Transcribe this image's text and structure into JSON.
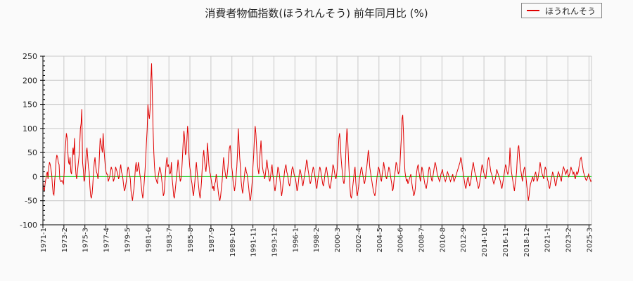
{
  "title": "消費者物価指数(ほうれんそう) 前年同月比 (%)",
  "legend": {
    "label": "ほうれんそう",
    "color": "#e00000"
  },
  "chart_data": {
    "type": "line",
    "title": "消費者物価指数(ほうれんそう) 前年同月比 (%)",
    "xlabel": "",
    "ylabel": "",
    "ylim": [
      -100,
      250
    ],
    "yticks": [
      250,
      200,
      150,
      100,
      50,
      0,
      -50,
      -100
    ],
    "xtick_labels": [
      "1971-1",
      "1973-2",
      "1975-3",
      "1977-4",
      "1979-5",
      "1981-6",
      "1983-7",
      "1985-8",
      "1987-9",
      "1989-10",
      "1991-11",
      "1993-12",
      "1996-1",
      "1998-2",
      "2000-3",
      "2002-4",
      "2004-5",
      "2006-6",
      "2008-7",
      "2010-8",
      "2012-9",
      "2014-10",
      "2016-11",
      "2018-12",
      "2021-1",
      "2023-2",
      "2025-3"
    ],
    "grid": true,
    "legend_position": "top-right",
    "zero_line_color": "#00cc00",
    "series": [
      {
        "name": "ほうれんそう",
        "color": "#e00000",
        "start": "1971-1",
        "frequency": "monthly",
        "values": [
          -10,
          -25,
          -30,
          -15,
          -5,
          5,
          10,
          -5,
          20,
          30,
          25,
          15,
          5,
          -20,
          -35,
          -38,
          -10,
          10,
          35,
          45,
          40,
          30,
          25,
          -5,
          -10,
          -10,
          -8,
          -12,
          -15,
          10,
          50,
          70,
          90,
          80,
          50,
          30,
          25,
          40,
          10,
          5,
          30,
          60,
          45,
          80,
          30,
          5,
          -5,
          10,
          25,
          40,
          60,
          100,
          110,
          140,
          30,
          15,
          -10,
          -5,
          20,
          50,
          60,
          40,
          20,
          10,
          -20,
          -40,
          -45,
          -35,
          -15,
          10,
          30,
          40,
          20,
          10,
          5,
          -5,
          10,
          45,
          80,
          70,
          60,
          50,
          90,
          60,
          40,
          20,
          10,
          5,
          5,
          -10,
          -5,
          0,
          10,
          20,
          15,
          5,
          -10,
          -5,
          5,
          20,
          15,
          10,
          5,
          -5,
          0,
          15,
          25,
          10,
          5,
          -5,
          -20,
          -30,
          -25,
          -15,
          -5,
          10,
          20,
          15,
          5,
          -5,
          -30,
          -40,
          -50,
          -35,
          -25,
          -5,
          20,
          30,
          10,
          15,
          30,
          20,
          5,
          -5,
          -20,
          -35,
          -45,
          -30,
          -10,
          10,
          40,
          70,
          100,
          150,
          130,
          120,
          140,
          200,
          235,
          170,
          100,
          50,
          20,
          0,
          -5,
          -10,
          -15,
          0,
          10,
          20,
          15,
          5,
          -10,
          -20,
          -40,
          -35,
          -15,
          10,
          30,
          40,
          20,
          25,
          15,
          5,
          10,
          30,
          -5,
          -20,
          -40,
          -45,
          -30,
          -15,
          0,
          15,
          35,
          20,
          5,
          -10,
          -5,
          10,
          40,
          70,
          95,
          80,
          45,
          50,
          75,
          105,
          85,
          40,
          20,
          10,
          -5,
          -15,
          -30,
          -40,
          -25,
          -10,
          15,
          30,
          10,
          -5,
          -20,
          -35,
          -45,
          -30,
          -10,
          20,
          40,
          55,
          35,
          20,
          10,
          30,
          70,
          50,
          25,
          10,
          5,
          -5,
          -15,
          -25,
          -20,
          -30,
          -15,
          -10,
          5,
          -5,
          -20,
          -35,
          -45,
          -50,
          -40,
          -25,
          -10,
          15,
          40,
          25,
          10,
          0,
          -5,
          5,
          20,
          45,
          60,
          65,
          50,
          20,
          10,
          -10,
          -20,
          -30,
          -15,
          0,
          20,
          50,
          100,
          70,
          40,
          20,
          -10,
          -25,
          -35,
          -20,
          -5,
          10,
          20,
          10,
          5,
          -5,
          -20,
          -35,
          -50,
          -45,
          -30,
          -10,
          20,
          45,
          80,
          105,
          90,
          60,
          30,
          15,
          5,
          30,
          55,
          75,
          45,
          20,
          10,
          5,
          -5,
          5,
          20,
          35,
          20,
          10,
          -5,
          -10,
          0,
          15,
          25,
          5,
          -5,
          -20,
          -30,
          -20,
          -10,
          5,
          20,
          15,
          5,
          -10,
          -25,
          -40,
          -30,
          -15,
          -5,
          10,
          20,
          25,
          10,
          5,
          -5,
          -15,
          -20,
          -10,
          0,
          15,
          20,
          15,
          5,
          0,
          -5,
          -15,
          -30,
          -25,
          -10,
          5,
          15,
          10,
          0,
          -10,
          -20,
          -10,
          0,
          10,
          20,
          35,
          30,
          15,
          5,
          -5,
          -15,
          -10,
          5,
          10,
          20,
          15,
          5,
          -5,
          -20,
          -25,
          -10,
          0,
          10,
          20,
          15,
          5,
          -5,
          -15,
          -20,
          -10,
          5,
          15,
          20,
          10,
          0,
          -10,
          -20,
          -25,
          -15,
          -5,
          10,
          25,
          20,
          10,
          0,
          -5,
          5,
          20,
          50,
          80,
          90,
          70,
          40,
          20,
          5,
          -10,
          -15,
          0,
          30,
          70,
          100,
          80,
          40,
          10,
          -20,
          -40,
          -45,
          -35,
          -20,
          -5,
          10,
          20,
          -10,
          -30,
          -40,
          -30,
          -20,
          -5,
          5,
          15,
          20,
          10,
          0,
          -10,
          -15,
          -5,
          10,
          20,
          35,
          55,
          45,
          20,
          10,
          0,
          -10,
          -20,
          -30,
          -35,
          -40,
          -30,
          -15,
          0,
          10,
          20,
          15,
          5,
          -5,
          -10,
          5,
          15,
          30,
          20,
          10,
          0,
          -5,
          5,
          10,
          20,
          15,
          5,
          -5,
          -15,
          -30,
          -25,
          -10,
          5,
          15,
          30,
          25,
          15,
          5,
          10,
          20,
          50,
          80,
          120,
          128,
          90,
          40,
          10,
          0,
          -10,
          -5,
          -15,
          -10,
          -5,
          0,
          5,
          -10,
          -20,
          -30,
          -40,
          -35,
          -25,
          -5,
          10,
          20,
          25,
          10,
          0,
          -10,
          5,
          20,
          15,
          5,
          -5,
          -15,
          -20,
          -25,
          -15,
          -5,
          10,
          20,
          15,
          5,
          -5,
          -10,
          0,
          10,
          20,
          30,
          25,
          15,
          5,
          0,
          -5,
          -10,
          -5,
          5,
          10,
          15,
          5,
          0,
          -5,
          -10,
          -5,
          5,
          10,
          5,
          0,
          -5,
          -10,
          -5,
          0,
          5,
          -5,
          -10,
          -5,
          0,
          5,
          10,
          15,
          20,
          25,
          30,
          40,
          35,
          20,
          10,
          0,
          -10,
          -20,
          -25,
          -15,
          -5,
          0,
          -10,
          -20,
          -15,
          -5,
          10,
          20,
          30,
          20,
          10,
          5,
          0,
          -10,
          -15,
          -25,
          -20,
          -10,
          0,
          15,
          25,
          20,
          10,
          5,
          0,
          -5,
          10,
          20,
          35,
          40,
          30,
          20,
          10,
          5,
          0,
          -10,
          -15,
          -10,
          -5,
          5,
          15,
          10,
          5,
          0,
          -5,
          -10,
          -20,
          -25,
          -15,
          -5,
          5,
          15,
          25,
          20,
          10,
          5,
          10,
          25,
          60,
          30,
          10,
          0,
          -10,
          -20,
          -30,
          -15,
          -5,
          10,
          40,
          60,
          65,
          40,
          20,
          10,
          0,
          -10,
          5,
          15,
          20,
          10,
          -5,
          -20,
          -35,
          -50,
          -40,
          -25,
          -15,
          -10,
          -5,
          0,
          -10,
          -5,
          5,
          10,
          0,
          -10,
          -5,
          5,
          15,
          30,
          20,
          10,
          5,
          0,
          -5,
          10,
          20,
          15,
          5,
          -5,
          -10,
          -20,
          -25,
          -15,
          -5,
          0,
          10,
          5,
          0,
          -10,
          -20,
          -15,
          -5,
          5,
          10,
          5,
          0,
          -5,
          -10,
          5,
          15,
          20,
          15,
          10,
          5,
          10,
          15,
          5,
          0,
          5,
          10,
          20,
          15,
          10,
          5,
          10,
          0,
          -5,
          5,
          10,
          5,
          10,
          20,
          30,
          38,
          40,
          30,
          20,
          10,
          5,
          0,
          -5,
          -8,
          -5,
          0,
          5,
          0,
          -5,
          -10,
          -8
        ]
      }
    ]
  }
}
